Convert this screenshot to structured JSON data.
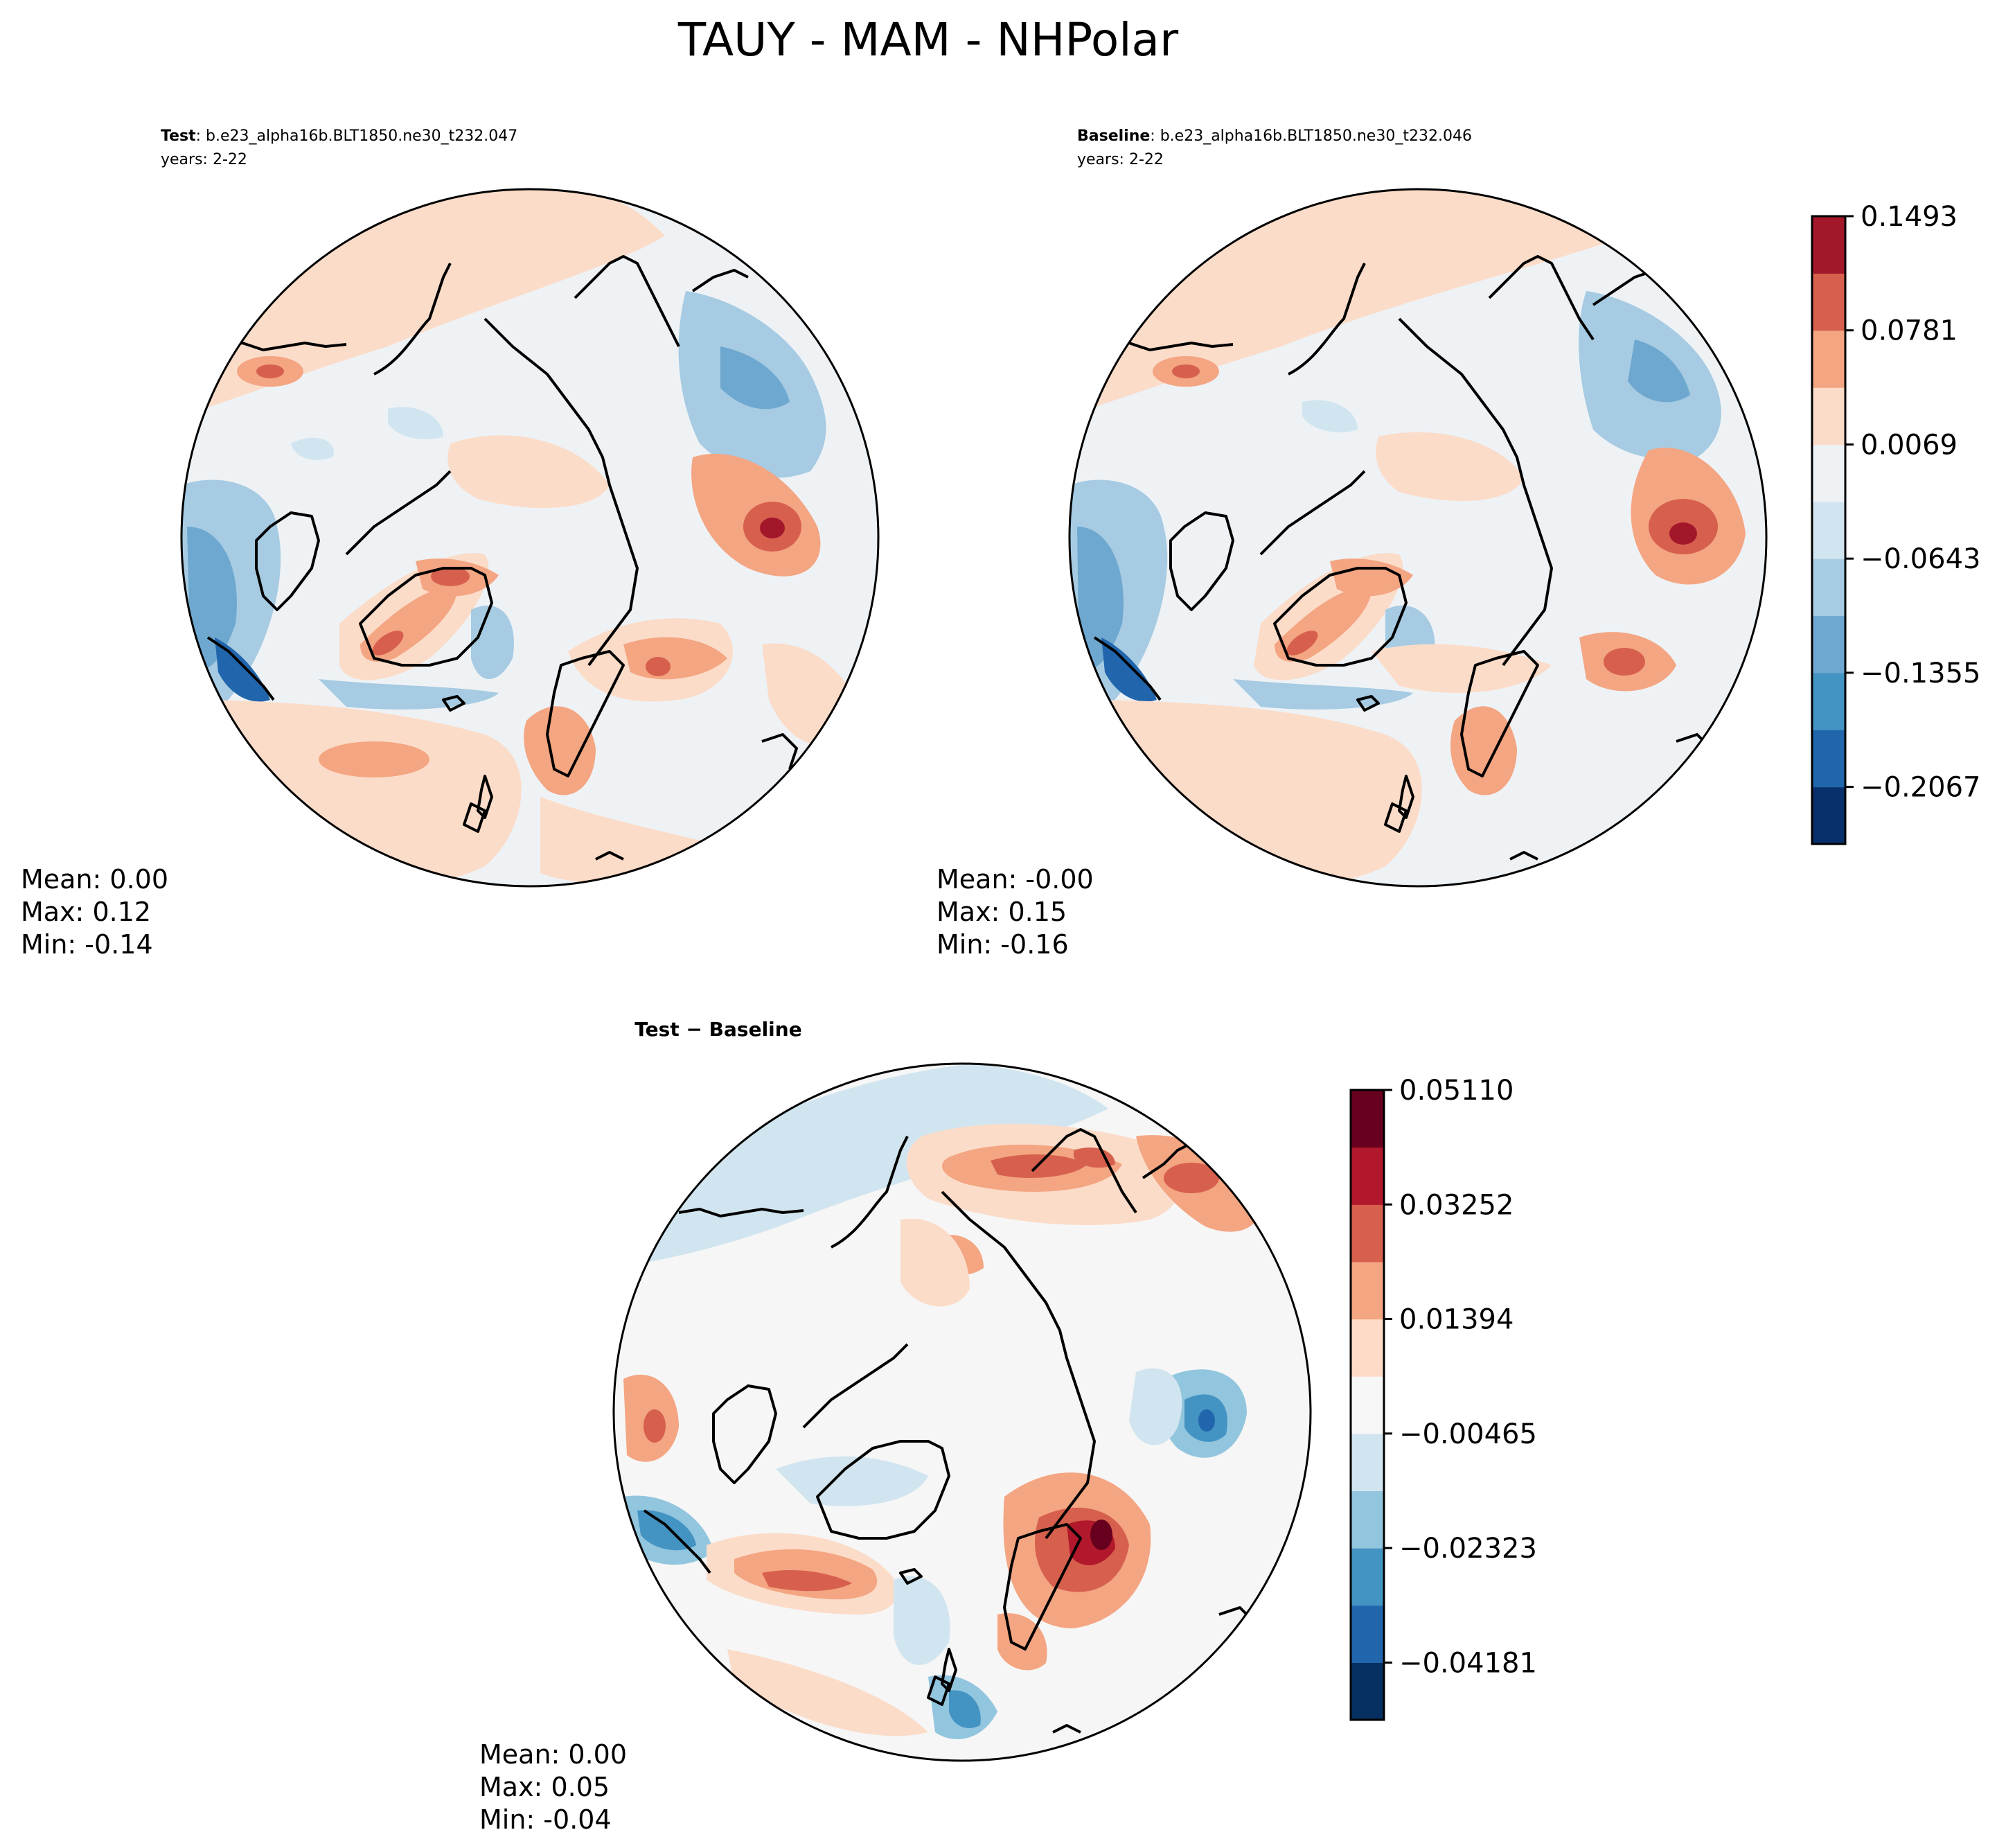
{
  "figure": {
    "title": "TAUY - MAM - NHPolar"
  },
  "chart_data": [
    {
      "type": "heatmap",
      "projection": "north-polar-stereographic",
      "title_bold": "Test",
      "title_run": ": b.e23_alpha16b.BLT1850.ne30_t232.047",
      "subtitle": "years: 2-22",
      "stats": {
        "mean": "Mean:  0.00",
        "max": "Max:  0.12",
        "min": "Min: -0.14"
      },
      "stats_values": {
        "mean": 0.0,
        "max": 0.12,
        "min": -0.14
      }
    },
    {
      "type": "heatmap",
      "projection": "north-polar-stereographic",
      "title_bold": "Baseline",
      "title_run": ": b.e23_alpha16b.BLT1850.ne30_t232.046",
      "subtitle": "years: 2-22",
      "stats": {
        "mean": "Mean: -0.00",
        "max": "Max:  0.15",
        "min": "Min: -0.16"
      },
      "stats_values": {
        "mean": -0.0,
        "max": 0.15,
        "min": -0.16
      }
    },
    {
      "type": "heatmap",
      "projection": "north-polar-stereographic",
      "title_bold": "Test − Baseline",
      "stats": {
        "mean": "Mean:  0.00",
        "max": "Max:  0.05",
        "min": "Min: -0.04"
      },
      "stats_values": {
        "mean": 0.0,
        "max": 0.05,
        "min": -0.04
      }
    }
  ],
  "colorbars": {
    "main": {
      "range": [
        -0.2423,
        0.1493
      ],
      "bins": 11,
      "tick_values": [
        0.1493,
        0.0781,
        0.0069,
        -0.0643,
        -0.1355,
        -0.2067
      ],
      "tick_labels": [
        "0.1493",
        "0.0781",
        "0.0069",
        "−0.0643",
        "−0.1355",
        "−0.2067"
      ],
      "colors": [
        "#08306b",
        "#2166ac",
        "#4393c3",
        "#6ea8d0",
        "#a6cbe2",
        "#d1e5f0",
        "#eef2f5",
        "#fbdcc9",
        "#f4a582",
        "#d6604d",
        "#a3172b"
      ]
    },
    "diff": {
      "range": [
        -0.0511,
        0.0511
      ],
      "bins": 11,
      "tick_values": [
        0.0511,
        0.03252,
        0.01394,
        -0.00465,
        -0.02323,
        -0.04181
      ],
      "tick_labels": [
        "0.05110",
        "0.03252",
        "0.01394",
        "−0.00465",
        "−0.02323",
        "−0.04181"
      ],
      "colors": [
        "#053061",
        "#2166ac",
        "#4393c3",
        "#92c5de",
        "#d1e5f0",
        "#f7f7f7",
        "#fddbc7",
        "#f4a582",
        "#d6604d",
        "#b2182b",
        "#67001f"
      ]
    }
  },
  "palette": {
    "neutral_main": "#eef2f5",
    "neutral_diff": "#f6f6f6",
    "coast": "#000000"
  }
}
